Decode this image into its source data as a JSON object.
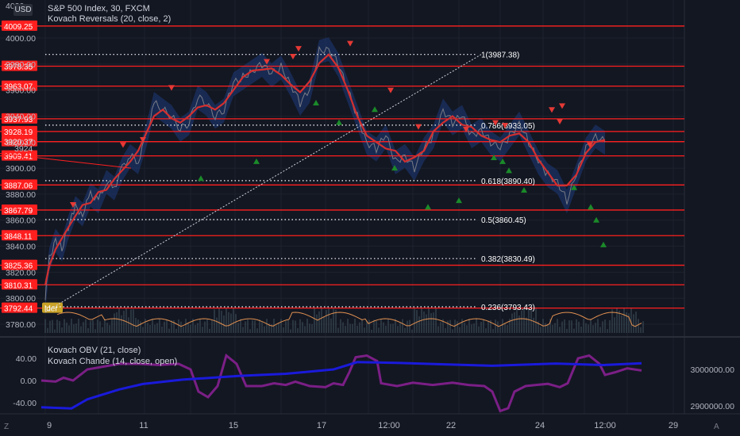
{
  "header": {
    "currency": "USD",
    "symbol_title": "S&P 500 Index, 30, FXCM",
    "indicator_1": "Kovach Reversals (20, close, 2)",
    "indicator_2": "Kovach OBV (21, close)",
    "indicator_3": "Kovach Chande (14, close, open)",
    "overlay_tag": "lder"
  },
  "corners": {
    "left": "Z",
    "right": "A"
  },
  "colors": {
    "background": "#131722",
    "grid": "#1e222d",
    "hline": "#ff1f1f",
    "band": "#1e3a7a",
    "price": "#787b86",
    "ma": "#d32f2f",
    "up_arrow": "#1b8a2a",
    "down_arrow": "#e53935",
    "obv": "#1a1adb",
    "chande": "#7b1f86",
    "small_osc": "#e09050",
    "axis_text": "#b2b5be",
    "label_bg": "#ff1f1f",
    "tag_bg": "#c9a227"
  },
  "chart_data": {
    "type": "line",
    "main_axis": {
      "ticks": [
        "4000.00",
        "3980.00",
        "3960.00",
        "3940.00",
        "3920.00",
        "3900.00",
        "3880.00",
        "3860.00",
        "3840.00",
        "3820.00",
        "3800.00",
        "3780.00"
      ],
      "partial_top": "4020",
      "partial_mid": "3924"
    },
    "x_axis": {
      "labels": [
        "9",
        "11",
        "15",
        "17",
        "12:00",
        "22",
        "24",
        "12:00",
        "29"
      ]
    },
    "horizontal_levels": [
      "4009.25",
      "3978.35",
      "3963.07",
      "3937.93",
      "3928.19",
      "3920.37",
      "3909.41",
      "3887.06",
      "3867.79",
      "3848.11",
      "3825.36",
      "3810.31",
      "3792.44"
    ],
    "fibonacci": [
      {
        "label": "1(3987.38)",
        "price": 3987.38
      },
      {
        "label": "0.786(3933.05)",
        "price": 3933.05
      },
      {
        "label": "0.618(3890.40)",
        "price": 3890.4
      },
      {
        "label": "0.5(3860.45)",
        "price": 3860.45
      },
      {
        "label": "0.382(3830.49)",
        "price": 3830.49
      },
      {
        "label": "0.236(3793.43)",
        "price": 3793.43
      }
    ],
    "price_series": [
      3800,
      3830,
      3845,
      3838,
      3855,
      3870,
      3865,
      3880,
      3875,
      3890,
      3885,
      3900,
      3910,
      3905,
      3925,
      3950,
      3945,
      3940,
      3930,
      3935,
      3955,
      3950,
      3940,
      3945,
      3965,
      3970,
      3975,
      3980,
      3972,
      3978,
      3965,
      3950,
      3960,
      3990,
      3992,
      3980,
      3960,
      3940,
      3920,
      3915,
      3925,
      3905,
      3910,
      3900,
      3915,
      3925,
      3945,
      3935,
      3940,
      3925,
      3930,
      3920,
      3915,
      3925,
      3935,
      3920,
      3905,
      3895,
      3890,
      3875,
      3895,
      3915,
      3925,
      3920
    ],
    "x_positions": [
      57,
      62,
      70,
      78,
      86,
      95,
      104,
      114,
      124,
      134,
      144,
      154,
      164,
      174,
      184,
      194,
      205,
      216,
      227,
      238,
      249,
      260,
      271,
      282,
      294,
      306,
      318,
      330,
      342,
      354,
      366,
      378,
      390,
      402,
      414,
      426,
      438,
      450,
      462,
      474,
      486,
      498,
      510,
      522,
      534,
      546,
      558,
      570,
      582,
      594,
      606,
      618,
      630,
      642,
      654,
      666,
      678,
      690,
      702,
      714,
      726,
      738,
      750,
      762
    ],
    "up_arrows": [
      [
        253,
        3892
      ],
      [
        323,
        3905
      ],
      [
        398,
        3950
      ],
      [
        427,
        3935
      ],
      [
        472,
        3945
      ],
      [
        497,
        3900
      ],
      [
        539,
        3870
      ],
      [
        578,
        3875
      ],
      [
        622,
        3908
      ],
      [
        633,
        3905
      ],
      [
        641,
        3898
      ],
      [
        660,
        3883
      ],
      [
        723,
        3885
      ],
      [
        744,
        3870
      ],
      [
        751,
        3860
      ],
      [
        760,
        3841
      ]
    ],
    "down_arrows": [
      [
        92,
        3872
      ],
      [
        155,
        3918
      ],
      [
        180,
        3922
      ],
      [
        216,
        3962
      ],
      [
        336,
        3982
      ],
      [
        369,
        3986
      ],
      [
        376,
        3992
      ],
      [
        441,
        3996
      ],
      [
        492,
        3960
      ],
      [
        527,
        3932
      ],
      [
        587,
        3930
      ],
      [
        624,
        3935
      ],
      [
        636,
        3933
      ],
      [
        695,
        3945
      ],
      [
        705,
        3936
      ],
      [
        708,
        3948
      ],
      [
        743,
        3918
      ]
    ],
    "obv_axis": {
      "ticks": [
        "3000000.00",
        "2900000.00"
      ]
    },
    "chande_axis": {
      "ticks": [
        "40.00",
        "0.00",
        "-40.00"
      ]
    },
    "obv_series": [
      [
        52,
        2896000
      ],
      [
        90,
        2893000
      ],
      [
        110,
        2918000
      ],
      [
        150,
        2945000
      ],
      [
        180,
        2960000
      ],
      [
        230,
        2972000
      ],
      [
        300,
        2982000
      ],
      [
        360,
        2988000
      ],
      [
        420,
        3000000
      ],
      [
        450,
        3020000
      ],
      [
        500,
        3018000
      ],
      [
        560,
        3014000
      ],
      [
        620,
        3010000
      ],
      [
        700,
        3016000
      ],
      [
        760,
        3012000
      ],
      [
        808,
        3017000
      ]
    ],
    "chande_series": [
      [
        52,
        0
      ],
      [
        70,
        -2
      ],
      [
        80,
        5
      ],
      [
        92,
        0
      ],
      [
        110,
        20
      ],
      [
        130,
        25
      ],
      [
        150,
        30
      ],
      [
        175,
        30
      ],
      [
        200,
        28
      ],
      [
        225,
        30
      ],
      [
        240,
        20
      ],
      [
        250,
        -20
      ],
      [
        262,
        -30
      ],
      [
        274,
        -10
      ],
      [
        285,
        45
      ],
      [
        298,
        30
      ],
      [
        310,
        -10
      ],
      [
        330,
        -10
      ],
      [
        345,
        -5
      ],
      [
        360,
        -8
      ],
      [
        372,
        -2
      ],
      [
        390,
        -10
      ],
      [
        410,
        -12
      ],
      [
        420,
        -5
      ],
      [
        432,
        -8
      ],
      [
        440,
        15
      ],
      [
        448,
        42
      ],
      [
        462,
        45
      ],
      [
        475,
        35
      ],
      [
        480,
        -5
      ],
      [
        500,
        -10
      ],
      [
        520,
        -4
      ],
      [
        545,
        -8
      ],
      [
        570,
        -4
      ],
      [
        590,
        -8
      ],
      [
        610,
        -10
      ],
      [
        620,
        -20
      ],
      [
        630,
        -55
      ],
      [
        640,
        -50
      ],
      [
        648,
        -20
      ],
      [
        662,
        -10
      ],
      [
        675,
        -8
      ],
      [
        690,
        -6
      ],
      [
        705,
        -12
      ],
      [
        715,
        -5
      ],
      [
        728,
        40
      ],
      [
        742,
        45
      ],
      [
        755,
        30
      ],
      [
        762,
        10
      ],
      [
        775,
        15
      ],
      [
        790,
        22
      ],
      [
        808,
        18
      ]
    ]
  }
}
